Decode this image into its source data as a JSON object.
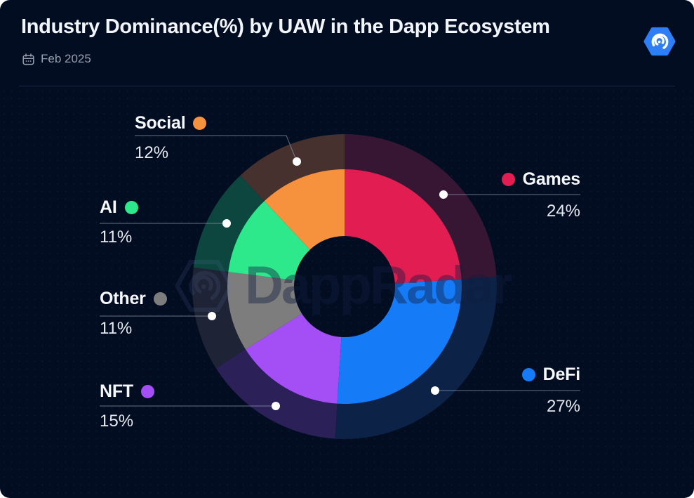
{
  "header": {
    "title": "Industry Dominance(%) by UAW in the Dapp Ecosystem",
    "period": "Feb 2025",
    "brand_color": "#2e7ff7"
  },
  "watermark": {
    "text": "DappRadar"
  },
  "colors": {
    "background": "#030d21",
    "divider": "#1b2947",
    "label_text": "#f7f8fb",
    "pct_text": "#e6e9ee",
    "connector_line": "#8a94a8",
    "connector_dot": "#ffffff"
  },
  "chart_data": {
    "type": "pie",
    "subtype": "donut",
    "title": "Industry Dominance(%) by UAW in the Dapp Ecosystem",
    "period": "Feb 2025",
    "start_angle_deg": 0,
    "direction": "clockwise",
    "legend_position": "callouts",
    "total": 100,
    "slices": [
      {
        "label": "Games",
        "value": 24,
        "pct_label": "24%",
        "color": "#e11d52",
        "muted_color": "#371634"
      },
      {
        "label": "DeFi",
        "value": 27,
        "pct_label": "27%",
        "color": "#157bf6",
        "muted_color": "#0c2347"
      },
      {
        "label": "NFT",
        "value": 15,
        "pct_label": "15%",
        "color": "#a44ef6",
        "muted_color": "#2b2158"
      },
      {
        "label": "Other",
        "value": 11,
        "pct_label": "11%",
        "color": "#7d7d7d",
        "muted_color": "#1e2436"
      },
      {
        "label": "AI",
        "value": 11,
        "pct_label": "11%",
        "color": "#2ee88c",
        "muted_color": "#0d463e"
      },
      {
        "label": "Social",
        "value": 12,
        "pct_label": "12%",
        "color": "#f6913e",
        "muted_color": "#46312f"
      }
    ]
  }
}
